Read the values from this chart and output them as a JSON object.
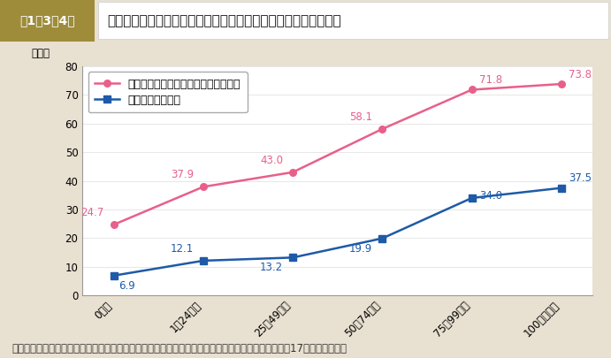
{
  "title_box_text": "第1－3－4図",
  "title_text": "「一日の仕事で疲れ退社後何もやる気になれない」と長時間労働",
  "x_labels": [
    "0時間",
    "1～24時間",
    "25～49時間",
    "50～74時間",
    "75～99時間",
    "100時間以上"
  ],
  "series1_label": "「いつもそうだ」＋「しばしばある」",
  "series2_label": "「いつもそうだ」",
  "series1_values": [
    24.7,
    37.9,
    43.0,
    58.1,
    71.8,
    73.8
  ],
  "series2_values": [
    6.9,
    12.1,
    13.2,
    19.9,
    34.0,
    37.5
  ],
  "series1_color": "#e8608a",
  "series2_color": "#1e5aa8",
  "ylim": [
    0,
    80
  ],
  "yticks": [
    0,
    10,
    20,
    30,
    40,
    50,
    60,
    70,
    80
  ],
  "ylabel": "（％）",
  "bg_color": "#e8e0d0",
  "plot_bg_color": "#ffffff",
  "header_bg_color": "#9e8c3a",
  "header_text_color": "#ffffff",
  "title_bg_color": "#ffffff",
  "footer_text": "（備考）　労働政策研究・研究機構「日本の長時間労働・不払い労働時間の実態と実証分析」（平成17年）より作成。",
  "note_fontsize": 8.5,
  "title_fontsize": 11,
  "axis_fontsize": 8.5,
  "legend_fontsize": 9
}
